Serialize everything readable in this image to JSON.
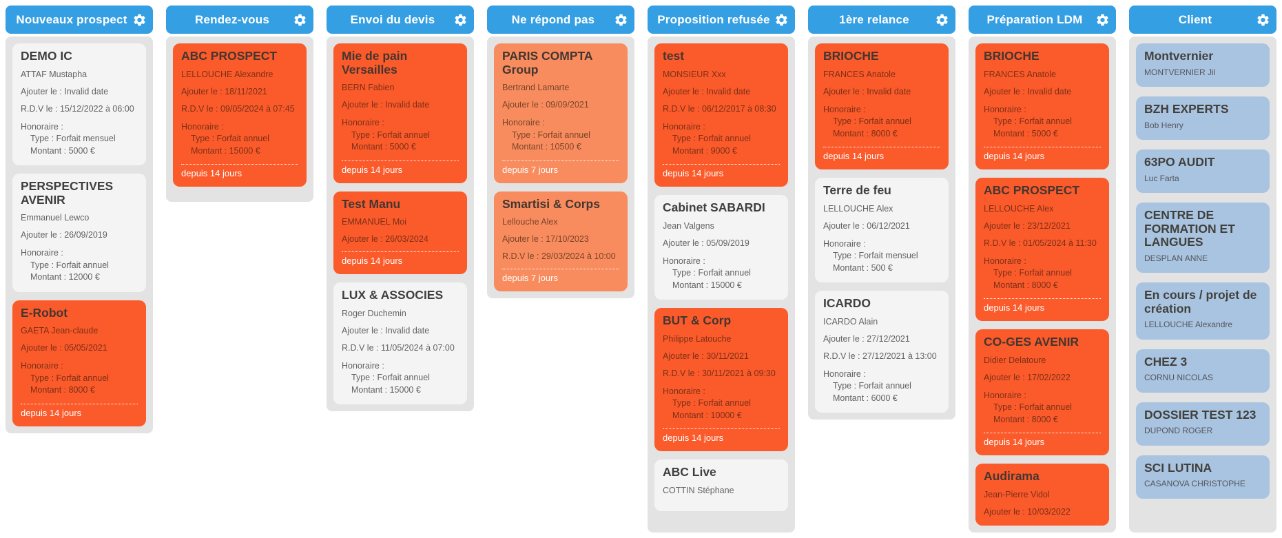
{
  "colors": {
    "header_blue": "#349fe3",
    "panel_gray": "#e3e3e3",
    "card_white": "#f4f4f4",
    "card_orange": "#fb5a2b",
    "card_light_orange": "#f88c5e",
    "card_blue": "#a9c4e1",
    "badge_text": "#ffffff"
  },
  "board": {
    "columns": [
      {
        "title": "Nouveaux prospect",
        "cards": [
          {
            "variant": "white",
            "title": "DEMO IC",
            "contact": "ATTAF Mustapha",
            "lines": [
              "Ajouter le : Invalid date",
              "R.D.V le : 15/12/2022 à 06:00"
            ],
            "honoraire": {
              "header": "Honoraire :",
              "rows": [
                "Type : Forfait mensuel",
                "Montant : 5000 €"
              ]
            },
            "badge": null
          },
          {
            "variant": "white",
            "title": "PERSPECTIVES AVENIR",
            "contact": "Emmanuel Lewco",
            "lines": [
              "Ajouter le : 26/09/2019"
            ],
            "honoraire": {
              "header": "Honoraire :",
              "rows": [
                "Type : Forfait annuel",
                "Montant : 12000 €"
              ]
            },
            "badge": null
          },
          {
            "variant": "orange",
            "title": "E-Robot",
            "contact": "GAETA Jean-claude",
            "lines": [
              "Ajouter le : 05/05/2021"
            ],
            "honoraire": {
              "header": "Honoraire :",
              "rows": [
                "Type : Forfait annuel",
                "Montant : 8000 €"
              ]
            },
            "badge": "depuis 14 jours"
          }
        ]
      },
      {
        "title": "Rendez-vous",
        "cards": [
          {
            "variant": "orange",
            "title": "ABC PROSPECT",
            "contact": "LELLOUCHE Alexandre",
            "lines": [
              "Ajouter le : 18/11/2021",
              "R.D.V le : 09/05/2024 à 07:45"
            ],
            "honoraire": {
              "header": "Honoraire :",
              "rows": [
                "Type : Forfait annuel",
                "Montant : 15000 €"
              ]
            },
            "badge": "depuis 14 jours"
          }
        ]
      },
      {
        "title": "Envoi du devis",
        "cards": [
          {
            "variant": "orange",
            "title": "Mie de pain Versailles",
            "contact": "BERN Fabien",
            "lines": [
              "Ajouter le : Invalid date"
            ],
            "honoraire": {
              "header": "Honoraire :",
              "rows": [
                "Type : Forfait annuel",
                "Montant : 5000 €"
              ]
            },
            "badge": "depuis 14 jours"
          },
          {
            "variant": "orange",
            "title": "Test Manu",
            "contact": "EMMANUEL Moi",
            "lines": [
              "Ajouter le : 26/03/2024"
            ],
            "honoraire": null,
            "badge": "depuis 14 jours"
          },
          {
            "variant": "white",
            "title": "LUX & ASSOCIES",
            "contact": "Roger Duchemin",
            "lines": [
              "Ajouter le : Invalid date",
              "R.D.V le : 11/05/2024 à 07:00"
            ],
            "honoraire": {
              "header": "Honoraire :",
              "rows": [
                "Type : Forfait annuel",
                "Montant : 15000 €"
              ]
            },
            "badge": null
          }
        ]
      },
      {
        "title": "Ne répond pas",
        "cards": [
          {
            "variant": "light-orange",
            "title": "PARIS COMPTA Group",
            "contact": "Bertrand Lamarte",
            "lines": [
              "Ajouter le : 09/09/2021"
            ],
            "honoraire": {
              "header": "Honoraire :",
              "rows": [
                "Type : Forfait annuel",
                "Montant : 10500 €"
              ]
            },
            "badge": "depuis 7 jours"
          },
          {
            "variant": "light-orange",
            "title": "Smartisi & Corps",
            "contact": "Lellouche Alex",
            "lines": [
              "Ajouter le : 17/10/2023",
              "R.D.V le : 29/03/2024 à 10:00"
            ],
            "honoraire": null,
            "badge": "depuis 7 jours"
          }
        ]
      },
      {
        "title": "Proposition refusée",
        "cards": [
          {
            "variant": "orange",
            "title": "test",
            "contact": "MONSIEUR Xxx",
            "lines": [
              "Ajouter le : Invalid date",
              "R.D.V le : 06/12/2017 à 08:30"
            ],
            "honoraire": {
              "header": "Honoraire :",
              "rows": [
                "Type : Forfait annuel",
                "Montant : 9000 €"
              ]
            },
            "badge": "depuis 14 jours"
          },
          {
            "variant": "white",
            "title": "Cabinet SABARDI",
            "contact": "Jean Valgens",
            "lines": [
              "Ajouter le : 05/09/2019"
            ],
            "honoraire": {
              "header": "Honoraire :",
              "rows": [
                "Type : Forfait annuel",
                "Montant : 15000 €"
              ]
            },
            "badge": null
          },
          {
            "variant": "orange",
            "title": "BUT & Corp",
            "contact": "Philippe Latouche",
            "lines": [
              "Ajouter le : 30/11/2021",
              "R.D.V le : 30/11/2021 à 09:30"
            ],
            "honoraire": {
              "header": "Honoraire :",
              "rows": [
                "Type : Forfait annuel",
                "Montant : 10000 €"
              ]
            },
            "badge": "depuis 14 jours"
          },
          {
            "variant": "white",
            "title": "ABC Live",
            "contact": "COTTIN Stéphane",
            "lines": [],
            "honoraire": null,
            "badge": null
          }
        ]
      },
      {
        "title": "1ère relance",
        "cards": [
          {
            "variant": "orange",
            "title": "BRIOCHE",
            "contact": "FRANCES Anatole",
            "lines": [
              "Ajouter le : Invalid date"
            ],
            "honoraire": {
              "header": "Honoraire :",
              "rows": [
                "Type : Forfait annuel",
                "Montant : 8000 €"
              ]
            },
            "badge": "depuis 14 jours"
          },
          {
            "variant": "white",
            "title": "Terre de feu",
            "contact": "LELLOUCHE Alex",
            "lines": [
              "Ajouter le : 06/12/2021"
            ],
            "honoraire": {
              "header": "Honoraire :",
              "rows": [
                "Type : Forfait mensuel",
                "Montant : 500 €"
              ]
            },
            "badge": null
          },
          {
            "variant": "white",
            "title": "ICARDO",
            "contact": "ICARDO Alain",
            "lines": [
              "Ajouter le : 27/12/2021",
              "R.D.V le : 27/12/2021 à 13:00"
            ],
            "honoraire": {
              "header": "Honoraire :",
              "rows": [
                "Type : Forfait annuel",
                "Montant : 6000 €"
              ]
            },
            "badge": null
          }
        ]
      },
      {
        "title": "Préparation LDM",
        "cards": [
          {
            "variant": "orange",
            "title": "BRIOCHE",
            "contact": "FRANCES Anatole",
            "lines": [
              "Ajouter le : Invalid date"
            ],
            "honoraire": {
              "header": "Honoraire :",
              "rows": [
                "Type : Forfait annuel",
                "Montant : 5000 €"
              ]
            },
            "badge": "depuis 14 jours"
          },
          {
            "variant": "orange",
            "title": "ABC PROSPECT",
            "contact": "LELLOUCHE Alex",
            "lines": [
              "Ajouter le : 23/12/2021",
              "R.D.V le : 01/05/2024 à 11:30"
            ],
            "honoraire": {
              "header": "Honoraire :",
              "rows": [
                "Type : Forfait annuel",
                "Montant : 8000 €"
              ]
            },
            "badge": "depuis 14 jours"
          },
          {
            "variant": "orange",
            "title": "CO-GES AVENIR",
            "contact": "Didier Delatoure",
            "lines": [
              "Ajouter le : 17/02/2022"
            ],
            "honoraire": {
              "header": "Honoraire :",
              "rows": [
                "Type : Forfait annuel",
                "Montant : 8000 €"
              ]
            },
            "badge": "depuis 14 jours"
          },
          {
            "variant": "orange",
            "title": "Audirama",
            "contact": "Jean-Pierre Vidol",
            "lines": [
              "Ajouter le : 10/03/2022"
            ],
            "honoraire": null,
            "badge": null
          }
        ]
      },
      {
        "title": "Client",
        "cards": [
          {
            "variant": "blue",
            "title": "Montvernier",
            "contact": "MONTVERNIER Jil",
            "lines": [],
            "honoraire": null,
            "badge": null
          },
          {
            "variant": "blue",
            "title": "BZH EXPERTS",
            "contact": "Bob Henry",
            "lines": [],
            "honoraire": null,
            "badge": null
          },
          {
            "variant": "blue",
            "title": "63PO AUDIT",
            "contact": "Luc Farta",
            "lines": [],
            "honoraire": null,
            "badge": null
          },
          {
            "variant": "blue",
            "title": "CENTRE DE FORMATION ET LANGUES",
            "contact": "DESPLAN ANNE",
            "lines": [],
            "honoraire": null,
            "badge": null
          },
          {
            "variant": "blue",
            "title": "En cours / projet de création",
            "contact": "LELLOUCHE Alexandre",
            "lines": [],
            "honoraire": null,
            "badge": null
          },
          {
            "variant": "blue",
            "title": "CHEZ 3",
            "contact": "CORNU NICOLAS",
            "lines": [],
            "honoraire": null,
            "badge": null
          },
          {
            "variant": "blue",
            "title": "DOSSIER TEST 123",
            "contact": "DUPOND ROGER",
            "lines": [],
            "honoraire": null,
            "badge": null
          },
          {
            "variant": "blue",
            "title": "SCI LUTINA",
            "contact": "CASANOVA CHRISTOPHE",
            "lines": [],
            "honoraire": null,
            "badge": null
          }
        ]
      }
    ]
  }
}
